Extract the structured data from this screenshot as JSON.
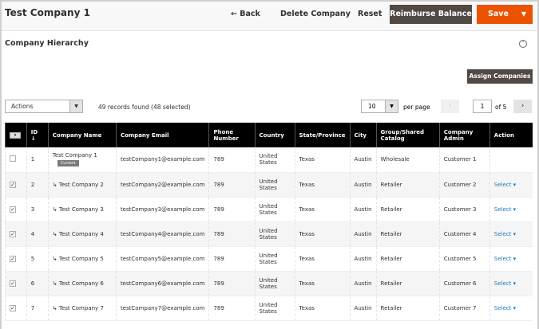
{
  "header": {
    "title": "Test Company 1",
    "back": "← Back",
    "delete": "Delete Company",
    "reset": "Reset",
    "reimburse": "Reimburse Balance",
    "save": "Save"
  },
  "section": {
    "title": "Company Hierarchy",
    "assign": "Assign Companies"
  },
  "toolbar": {
    "actions": "Actions",
    "records": "49 records found (48 selected)",
    "per_page_value": "10",
    "per_page_label": "per page",
    "page": "1",
    "of": "of 5"
  },
  "columns": [
    "ID ↓",
    "Company Name",
    "Company Email",
    "Phone Number",
    "Country",
    "State/Province",
    "City",
    "Group/Shared Catalog",
    "Company Admin",
    "Action"
  ],
  "current_badge": "Current",
  "rows": [
    {
      "checked": false,
      "id": "1",
      "name": "Test Company 1",
      "email": "testCompany1@example.com",
      "phone": "789",
      "country": "United States",
      "state": "Texas",
      "city": "Austin",
      "group": "Wholesale",
      "admin": "Customer 1",
      "action": ""
    },
    {
      "checked": true,
      "id": "2",
      "name": "↳ Test Company 2",
      "email": "testCompany2@example.com",
      "phone": "789",
      "country": "United States",
      "state": "Texas",
      "city": "Austin",
      "group": "Retailer",
      "admin": "Customer 2",
      "action": "Select ▾"
    },
    {
      "checked": true,
      "id": "3",
      "name": "↳ Test Company 3",
      "email": "testCompany3@example.com",
      "phone": "789",
      "country": "United States",
      "state": "Texas",
      "city": "Austin",
      "group": "Retailer",
      "admin": "Customer 3",
      "action": "Select ▾"
    },
    {
      "checked": true,
      "id": "4",
      "name": "↳ Test Company 4",
      "email": "testCompany4@example.com",
      "phone": "789",
      "country": "United States",
      "state": "Texas",
      "city": "Austin",
      "group": "Retailer",
      "admin": "Customer 4",
      "action": "Select ▾"
    },
    {
      "checked": true,
      "id": "5",
      "name": "↳ Test Company 5",
      "email": "testCompany5@example.com",
      "phone": "789",
      "country": "United States",
      "state": "Texas",
      "city": "Austin",
      "group": "Retailer",
      "admin": "Customer 5",
      "action": "Select ▾"
    },
    {
      "checked": true,
      "id": "6",
      "name": "↳ Test Company 6",
      "email": "testCompany6@example.com",
      "phone": "789",
      "country": "United States",
      "state": "Texas",
      "city": "Austin",
      "group": "Retailer",
      "admin": "Customer 6",
      "action": "Select ▾"
    },
    {
      "checked": true,
      "id": "7",
      "name": "↳ Test Company 7",
      "email": "testCompany7@example.com",
      "phone": "789",
      "country": "United States",
      "state": "Texas",
      "city": "Austin",
      "group": "Retailer",
      "admin": "Customer 7",
      "action": "Select ▾"
    }
  ]
}
